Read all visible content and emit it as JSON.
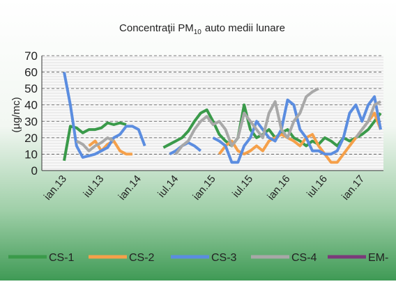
{
  "chart_data": {
    "type": "line",
    "title": [
      "Concentraţii PM",
      "10",
      "auto medii  lunare"
    ],
    "y_label": "(µg/mc)",
    "categories": [
      "ian.13",
      null,
      null,
      null,
      null,
      null,
      "iul.13",
      null,
      null,
      null,
      null,
      null,
      "ian.14",
      null,
      null,
      null,
      null,
      null,
      "iul.14",
      null,
      null,
      null,
      null,
      null,
      "ian.15",
      null,
      null,
      null,
      null,
      null,
      "iul.15",
      null,
      null,
      null,
      null,
      null,
      "ian.16",
      null,
      null,
      null,
      null,
      null,
      "iul.16",
      null,
      null,
      null,
      null,
      null,
      "ian.17",
      null,
      null,
      null
    ],
    "ylim": [
      0,
      70
    ],
    "yticks": [
      0,
      10,
      20,
      30,
      40,
      50,
      60,
      70
    ],
    "grid": true,
    "series": [
      {
        "name": "CS-1",
        "color": "#3a9a4a",
        "values": [
          6,
          27,
          26,
          23,
          25,
          25,
          26,
          29,
          28,
          29,
          28,
          null,
          null,
          null,
          null,
          null,
          14,
          16,
          18,
          20,
          24,
          30,
          35,
          37,
          30,
          22,
          18,
          15,
          20,
          40,
          25,
          20,
          22,
          25,
          20,
          23,
          25,
          20,
          18,
          15,
          18,
          16,
          20,
          18,
          15,
          20,
          18,
          20,
          22,
          25,
          30,
          35
        ]
      },
      {
        "name": "CS-2",
        "color": "#f5a04a",
        "values": [
          null,
          null,
          null,
          null,
          15,
          18,
          12,
          16,
          18,
          12,
          10,
          10,
          null,
          null,
          null,
          null,
          null,
          null,
          null,
          null,
          null,
          null,
          null,
          null,
          null,
          10,
          15,
          18,
          12,
          10,
          12,
          15,
          12,
          18,
          20,
          22,
          20,
          18,
          15,
          20,
          22,
          15,
          10,
          5,
          5,
          10,
          15,
          20,
          25,
          30,
          35,
          25
        ]
      },
      {
        "name": "CS-3",
        "color": "#5b8de0",
        "values": [
          60,
          40,
          15,
          8,
          9,
          10,
          12,
          14,
          20,
          22,
          27,
          27,
          25,
          15,
          null,
          null,
          null,
          10,
          12,
          15,
          17,
          15,
          12,
          null,
          20,
          18,
          15,
          5,
          5,
          15,
          20,
          30,
          25,
          20,
          18,
          25,
          43,
          40,
          25,
          20,
          12,
          12,
          10,
          10,
          12,
          20,
          35,
          40,
          30,
          40,
          45,
          25
        ]
      },
      {
        "name": "CS-4",
        "color": "#a8a8a8",
        "values": [
          null,
          null,
          18,
          16,
          12,
          15,
          17,
          20,
          18,
          null,
          null,
          null,
          null,
          null,
          null,
          null,
          null,
          null,
          10,
          15,
          18,
          25,
          30,
          33,
          28,
          30,
          25,
          15,
          20,
          35,
          30,
          25,
          20,
          35,
          42,
          25,
          20,
          30,
          35,
          45,
          48,
          50,
          null,
          null,
          null,
          null,
          null,
          20,
          25,
          30,
          40,
          42
        ]
      },
      {
        "name": "EM-",
        "color": "#7a3a7a",
        "values": [
          null,
          null,
          null,
          null,
          null,
          null,
          null,
          null,
          null,
          null,
          null,
          null,
          null,
          null,
          null,
          null,
          null,
          null,
          null,
          null,
          null,
          null,
          null,
          null,
          null,
          null,
          null,
          null,
          null,
          null,
          null,
          null,
          null,
          null,
          null,
          null,
          null,
          null,
          null,
          null,
          null,
          null,
          null,
          null,
          null,
          null,
          null,
          null,
          null,
          null,
          null,
          null
        ]
      }
    ]
  }
}
